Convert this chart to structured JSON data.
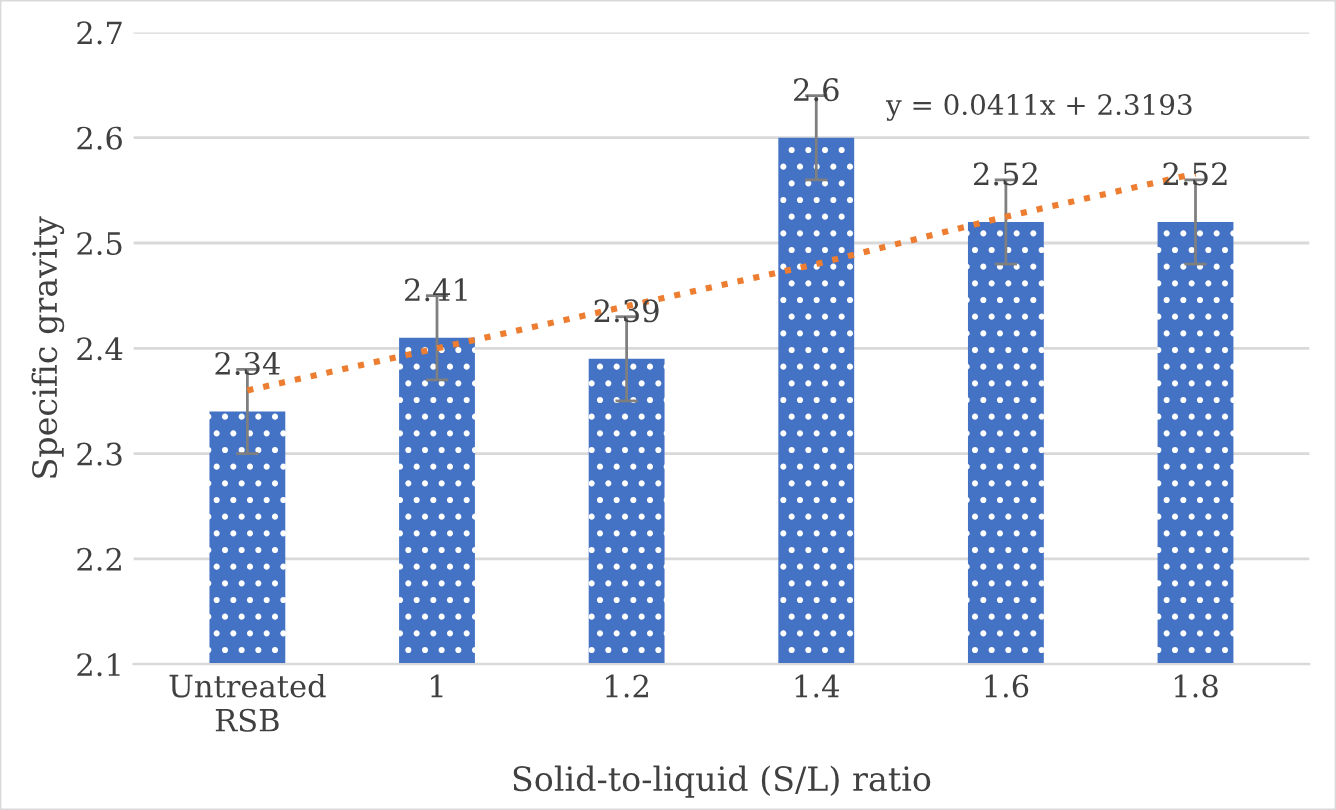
{
  "chart_data": {
    "type": "bar",
    "xlabel": "Solid-to-liquid (S/L) ratio",
    "ylabel": "Specific gravity",
    "categories": [
      "Untreated\nRSB",
      "1",
      "1.2",
      "1.4",
      "1.6",
      "1.8"
    ],
    "series": [
      {
        "color": "#4472c4",
        "values": [
          2.34,
          2.41,
          2.39,
          2.6,
          2.52,
          2.52
        ],
        "errors": [
          0.04,
          0.04,
          0.04,
          0.04,
          0.04,
          0.04
        ],
        "value_labels": [
          "2.34",
          "2.41",
          "2.39",
          "2.6",
          "2.52",
          "2.52"
        ]
      },
      {
        "type": "line",
        "color": "#ed7d31",
        "line_style": "dotted",
        "values": [
          2.36,
          2.4,
          2.44,
          2.48,
          2.525,
          2.566
        ]
      }
    ],
    "annotations": [
      "y = 0.0411x + 2.3193"
    ],
    "ylim": [
      2.1,
      2.7
    ],
    "yticks": [
      2.1,
      2.2,
      2.3,
      2.4,
      2.5,
      2.6,
      2.7
    ],
    "grid": "y"
  }
}
